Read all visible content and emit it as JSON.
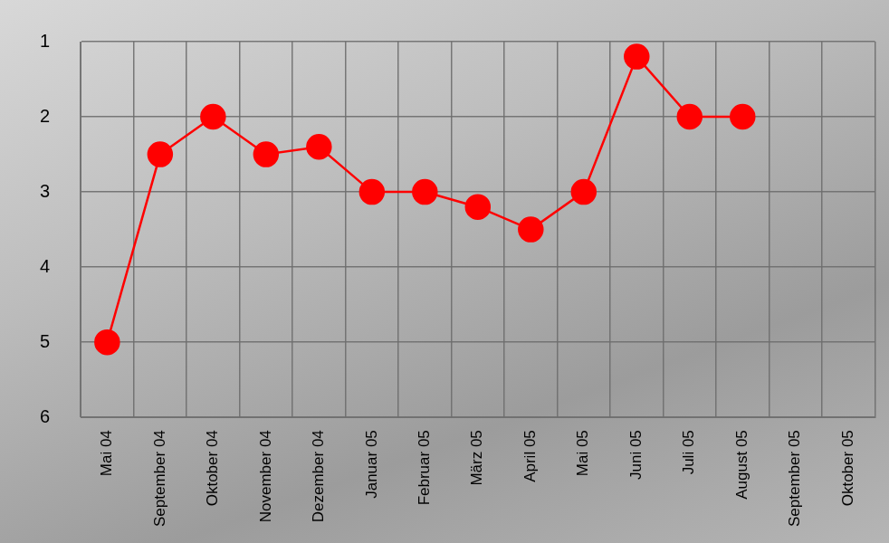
{
  "chart_data": {
    "type": "line",
    "categories": [
      "Mai 04",
      "September 04",
      "Oktober 04",
      "November 04",
      "Dezember 04",
      "Januar 05",
      "Februar 05",
      "März 05",
      "April 05",
      "Mai 05",
      "Juni 05",
      "Juli 05",
      "August 05",
      "September 05",
      "Oktober 05"
    ],
    "values": [
      5,
      2.5,
      2,
      2.5,
      2.4,
      3,
      3,
      3.2,
      3.5,
      3,
      1.2,
      2,
      2,
      null,
      null
    ],
    "color": "#ff0000",
    "marker": "circle",
    "line_style": "solid",
    "ylim": [
      6,
      1
    ],
    "yticks": [
      1,
      2,
      3,
      4,
      5,
      6
    ],
    "grid": true
  }
}
